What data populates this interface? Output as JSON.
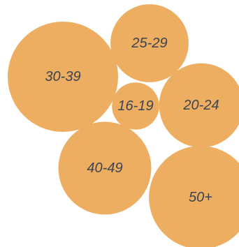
{
  "chart_data": {
    "type": "bubble",
    "title": "",
    "color": "#edae62",
    "label_color": "#3c4452",
    "bubbles": [
      {
        "label": "30-39",
        "value": 24
      },
      {
        "label": "25-29",
        "value": 12
      },
      {
        "label": "16-19",
        "value": 4.4
      },
      {
        "label": "20-24",
        "value": 14
      },
      {
        "label": "40-49",
        "value": 17
      },
      {
        "label": "50+",
        "value": 21
      }
    ]
  }
}
